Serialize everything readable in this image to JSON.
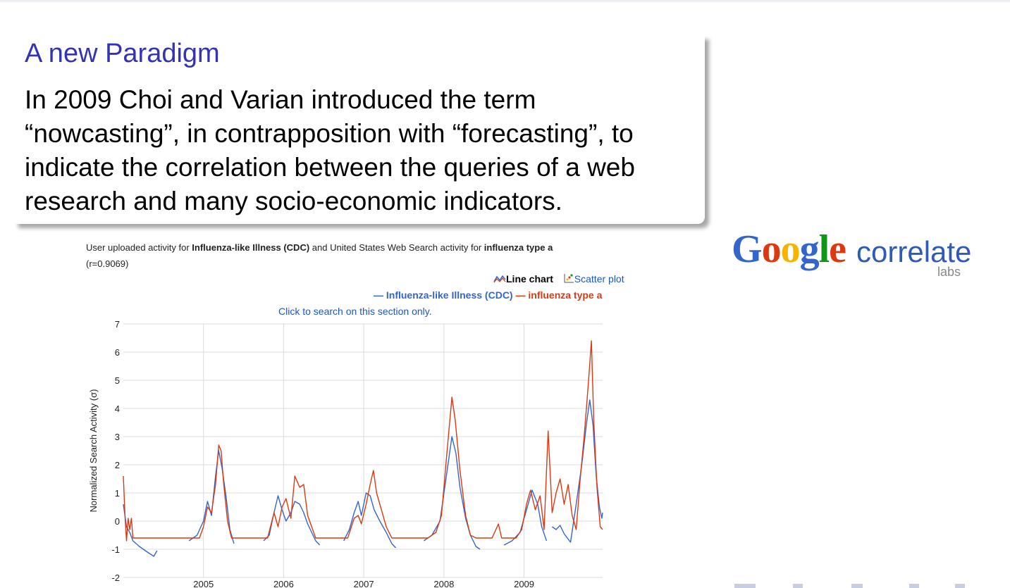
{
  "slide": {
    "title": "A new Paradigm",
    "body_lines": [
      "In 2009 Choi and Varian introduced the term",
      "“nowcasting”, in contrapposition with “forecasting”, to",
      "indicate the correlation between the queries of a web",
      "research and many socio-economic indicators."
    ]
  },
  "logo": {
    "letters": [
      "G",
      "o",
      "o",
      "g",
      "l",
      "e"
    ],
    "letter_colors": [
      "#3366cc",
      "#dc3912",
      "#f5b400",
      "#3366cc",
      "#109618",
      "#dc3912"
    ],
    "word": "correlate",
    "labs": "labs"
  },
  "chart_header": {
    "title_parts": [
      {
        "text": "User uploaded activity for ",
        "bold": false
      },
      {
        "text": "Influenza-like Illness (CDC)",
        "bold": true
      },
      {
        "text": " and United States Web Search activity for ",
        "bold": false
      },
      {
        "text": "influenza type a",
        "bold": true
      }
    ],
    "correlation": "(r=0.9069)",
    "line_chart_label": "Line chart",
    "scatter_plot_label": "Scatter plot",
    "legend_prefix": "—",
    "click_hint": "Click to search on this section only."
  },
  "chart_data": {
    "type": "line",
    "title": "",
    "xlabel": "",
    "ylabel": "Normalized Search Activity (σ)",
    "ylim": [
      -2,
      7
    ],
    "yticks": [
      "-2",
      "-1",
      "0",
      "1",
      "2",
      "3",
      "4",
      "5",
      "6",
      "7"
    ],
    "xlim": [
      2004.0,
      2009.98
    ],
    "xticks": [
      2005,
      2006,
      2007,
      2008,
      2009
    ],
    "xtick_labels": [
      "2005",
      "2006",
      "2007",
      "2008",
      "2009"
    ],
    "grid": true,
    "legend_position": "top-right",
    "series": [
      {
        "name": "Influenza-like Illness (CDC)",
        "color": "#3366cc",
        "segments": [
          [
            [
              2004.0,
              0.6
            ],
            [
              2004.04,
              -0.2
            ],
            [
              2004.08,
              -0.4
            ],
            [
              2004.12,
              -0.7
            ],
            [
              2004.2,
              -0.9
            ],
            [
              2004.3,
              -1.1
            ],
            [
              2004.38,
              -1.25
            ],
            [
              2004.42,
              -1.05
            ]
          ],
          [
            [
              2004.82,
              -0.7
            ],
            [
              2004.92,
              -0.5
            ],
            [
              2005.0,
              0.0
            ],
            [
              2005.05,
              0.7
            ],
            [
              2005.1,
              0.2
            ],
            [
              2005.15,
              1.6
            ],
            [
              2005.19,
              2.5
            ],
            [
              2005.23,
              1.9
            ],
            [
              2005.28,
              0.9
            ],
            [
              2005.33,
              -0.3
            ],
            [
              2005.38,
              -0.8
            ]
          ],
          [
            [
              2005.75,
              -0.7
            ],
            [
              2005.82,
              -0.5
            ],
            [
              2005.88,
              0.3
            ],
            [
              2005.93,
              0.9
            ],
            [
              2005.98,
              0.4
            ],
            [
              2006.03,
              0.0
            ],
            [
              2006.09,
              0.3
            ],
            [
              2006.14,
              0.7
            ],
            [
              2006.2,
              0.6
            ],
            [
              2006.25,
              0.3
            ],
            [
              2006.3,
              -0.1
            ],
            [
              2006.35,
              -0.4
            ],
            [
              2006.4,
              -0.7
            ],
            [
              2006.45,
              -0.85
            ]
          ],
          [
            [
              2006.75,
              -0.7
            ],
            [
              2006.82,
              -0.3
            ],
            [
              2006.88,
              0.3
            ],
            [
              2006.93,
              0.7
            ],
            [
              2006.97,
              0.2
            ],
            [
              2007.03,
              1.0
            ],
            [
              2007.08,
              0.9
            ],
            [
              2007.13,
              0.4
            ],
            [
              2007.2,
              0.0
            ],
            [
              2007.28,
              -0.4
            ],
            [
              2007.35,
              -0.8
            ],
            [
              2007.4,
              -0.95
            ]
          ],
          [
            [
              2007.75,
              -0.7
            ],
            [
              2007.85,
              -0.5
            ],
            [
              2007.95,
              0.0
            ],
            [
              2008.03,
              1.6
            ],
            [
              2008.1,
              3.0
            ],
            [
              2008.15,
              2.4
            ],
            [
              2008.2,
              1.2
            ],
            [
              2008.27,
              0.1
            ],
            [
              2008.33,
              -0.5
            ],
            [
              2008.4,
              -0.9
            ],
            [
              2008.45,
              -1.0
            ]
          ],
          [
            [
              2008.75,
              -0.85
            ],
            [
              2008.85,
              -0.7
            ],
            [
              2008.95,
              -0.4
            ],
            [
              2009.03,
              0.4
            ],
            [
              2009.1,
              1.1
            ],
            [
              2009.17,
              0.6
            ],
            [
              2009.22,
              -0.2
            ],
            [
              2009.28,
              -0.7
            ]
          ],
          [
            [
              2009.35,
              -0.2
            ],
            [
              2009.4,
              -0.3
            ],
            [
              2009.45,
              -0.15
            ],
            [
              2009.5,
              -0.45
            ],
            [
              2009.58,
              -0.75
            ],
            [
              2009.65,
              0.6
            ],
            [
              2009.72,
              2.0
            ],
            [
              2009.78,
              3.5
            ],
            [
              2009.82,
              4.3
            ],
            [
              2009.86,
              3.4
            ],
            [
              2009.9,
              1.6
            ],
            [
              2009.94,
              0.5
            ],
            [
              2009.97,
              0.1
            ],
            [
              2009.98,
              0.3
            ]
          ]
        ]
      },
      {
        "name": "influenza type a",
        "color": "#dc3912",
        "segments": [
          [
            [
              2004.0,
              1.6
            ],
            [
              2004.02,
              0.2
            ],
            [
              2004.04,
              -0.7
            ],
            [
              2004.06,
              0.1
            ],
            [
              2004.08,
              -0.3
            ],
            [
              2004.1,
              0.1
            ],
            [
              2004.12,
              -0.6
            ],
            [
              2004.2,
              -0.6
            ],
            [
              2004.5,
              -0.6
            ],
            [
              2004.8,
              -0.6
            ],
            [
              2004.95,
              -0.6
            ],
            [
              2005.0,
              -0.2
            ],
            [
              2005.05,
              0.5
            ],
            [
              2005.1,
              0.3
            ],
            [
              2005.15,
              1.3
            ],
            [
              2005.19,
              2.7
            ],
            [
              2005.22,
              2.5
            ],
            [
              2005.25,
              1.4
            ],
            [
              2005.3,
              0.0
            ],
            [
              2005.35,
              -0.6
            ],
            [
              2005.5,
              -0.6
            ],
            [
              2005.8,
              -0.6
            ],
            [
              2005.88,
              0.3
            ],
            [
              2005.93,
              -0.2
            ],
            [
              2005.98,
              0.5
            ],
            [
              2006.03,
              0.8
            ],
            [
              2006.09,
              0.1
            ],
            [
              2006.14,
              1.6
            ],
            [
              2006.2,
              1.2
            ],
            [
              2006.25,
              1.3
            ],
            [
              2006.3,
              0.2
            ],
            [
              2006.35,
              -0.2
            ],
            [
              2006.4,
              -0.6
            ],
            [
              2006.6,
              -0.6
            ],
            [
              2006.8,
              -0.6
            ],
            [
              2006.88,
              0.1
            ],
            [
              2006.93,
              0.2
            ],
            [
              2006.97,
              -0.1
            ],
            [
              2007.03,
              0.6
            ],
            [
              2007.08,
              1.3
            ],
            [
              2007.12,
              1.8
            ],
            [
              2007.16,
              1.0
            ],
            [
              2007.22,
              0.4
            ],
            [
              2007.28,
              -0.2
            ],
            [
              2007.35,
              -0.6
            ],
            [
              2007.55,
              -0.6
            ],
            [
              2007.8,
              -0.6
            ],
            [
              2007.9,
              -0.4
            ],
            [
              2007.97,
              0.2
            ],
            [
              2008.03,
              2.2
            ],
            [
              2008.1,
              4.4
            ],
            [
              2008.14,
              3.6
            ],
            [
              2008.2,
              1.8
            ],
            [
              2008.27,
              0.2
            ],
            [
              2008.33,
              -0.5
            ],
            [
              2008.4,
              -0.6
            ],
            [
              2008.6,
              -0.6
            ],
            [
              2008.68,
              -0.1
            ],
            [
              2008.72,
              -0.6
            ],
            [
              2008.9,
              -0.6
            ],
            [
              2008.97,
              -0.3
            ],
            [
              2009.03,
              0.6
            ],
            [
              2009.08,
              1.1
            ],
            [
              2009.14,
              0.4
            ],
            [
              2009.2,
              0.9
            ],
            [
              2009.25,
              -0.3
            ],
            [
              2009.3,
              3.2
            ],
            [
              2009.35,
              0.3
            ],
            [
              2009.4,
              1.0
            ],
            [
              2009.45,
              1.5
            ],
            [
              2009.5,
              0.6
            ],
            [
              2009.55,
              1.3
            ],
            [
              2009.6,
              0.2
            ],
            [
              2009.65,
              -0.3
            ],
            [
              2009.7,
              1.5
            ],
            [
              2009.75,
              3.0
            ],
            [
              2009.8,
              4.8
            ],
            [
              2009.84,
              6.4
            ],
            [
              2009.87,
              3.5
            ],
            [
              2009.91,
              1.2
            ],
            [
              2009.95,
              -0.2
            ],
            [
              2009.98,
              -0.3
            ]
          ]
        ]
      }
    ]
  }
}
